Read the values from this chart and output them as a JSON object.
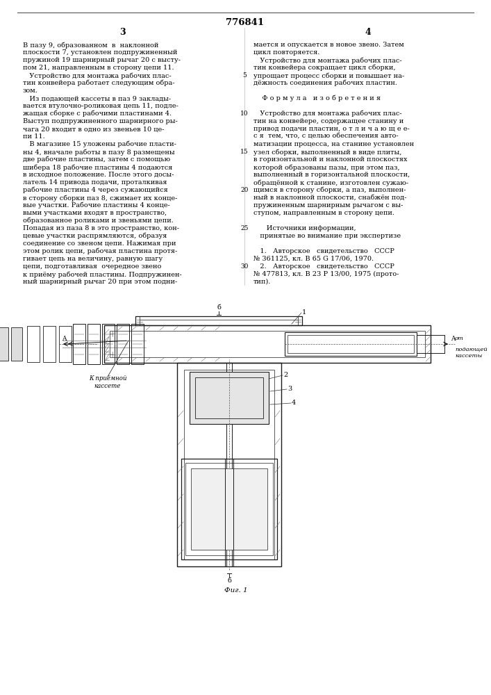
{
  "patent_number": "776841",
  "col1_num": "3",
  "col2_num": "4",
  "col1_lines": [
    "В пазу 9, образованном  в  наклонной",
    "плоскости 7, установлен подпружиненный",
    "пружиной 19 шарнирный рычаг 20 с высту-",
    "пом 21, направленным в сторону цепи 11.",
    "   Устройство для монтажа рабочих плас-",
    "тин конвейера работает следующим обра-",
    "зом.",
    "   Из подающей кассеты в паз 9 заклады-",
    "вается втулочно-роликовая цепь 11, подле-",
    "жащая сборке с рабочими пластинами 4.",
    "Выступ подпружиненного шарнирного ры-",
    "чага 20 входит в одно из звеньев 10 це-",
    "пи 11.",
    "   В магазине 15 уложены рабочие пласти-",
    "ны 4, вначале работы в пазу 8 размещены",
    "две рабочие пластины, затем с помощью",
    "шибера 18 рабочие пластины 4 подаются",
    "в исходное положение. После этого досы-",
    "латель 14 привода подачи, проталкивая",
    "рабочие пластины 4 через сужающийся",
    "в сторону сборки паз 8, сжимает их конце-",
    "вые участки. Рабочие пластины 4 конце-",
    "выми участками входят в пространство,",
    "образованное роликами и звеньями цепи.",
    "Попадая из паза 8 в это пространство, кон-",
    "цевые участки распрямляются, образуя",
    "соединение со звеном цепи. Нажимая при",
    "этом ролик цепи, рабочая пластина протя-",
    "гивает цепь на величину, равную шагу",
    "цепи, подготавливая  очередное звено",
    "к приёму рабочей пластины. Подпружинен-",
    "ный шарнирный рычаг 20 при этом подни-"
  ],
  "col2_lines": [
    "мается и опускается в новое звено. Затем",
    "цикл повторяется.",
    "   Устройство для монтажа рабочих плас-",
    "тин конвейера сокращает цикл сборки,",
    "упрощает процесс сборки и повышает на-",
    "дёжность соединения рабочих пластин.",
    "",
    "    Ф о р м у л а   и з о б р е т е н и я",
    "",
    "   Устройство для монтажа рабочих плас-",
    "тин на конвейере, содержащее станину и",
    "привод подачи пластин, о т л и ч а ю щ е е-",
    "с я  тем, что, с целью обеспечения авто-",
    "матизации процесса, на станине установлен",
    "узел сборки, выполненный в виде плиты,",
    "в горизонтальной и наклонной плоскостях",
    "которой образованы пазы, при этом паз,",
    "выполненный в горизонтальной плоскости,",
    "обращённой к станине, изготовлен сужаю-",
    "щимся в сторону сборки, а паз, выполнен-",
    "ный в наклонной плоскости, снабжён под-",
    "пружиненным шарнирным рычагом с вы-",
    "ступом, направленным в сторону цепи.",
    "",
    "      Источники информации,",
    "   принятые во внимание при экспертизе",
    "",
    "   1.   Авторское   свидетельство   СССР",
    "№ 361125, кл. В 65 G 17/06, 1970.",
    "   2.   Авторское   свидетельство   СССР",
    "№ 477813, кл. В 23 Р 13/00, 1975 (прото-",
    "тип)."
  ],
  "line_numbers_col1": [
    "5",
    "10",
    "15",
    "20",
    "25",
    "30"
  ],
  "line_numbers_col2": [
    "5",
    "10",
    "15",
    "20",
    "25",
    "30"
  ]
}
